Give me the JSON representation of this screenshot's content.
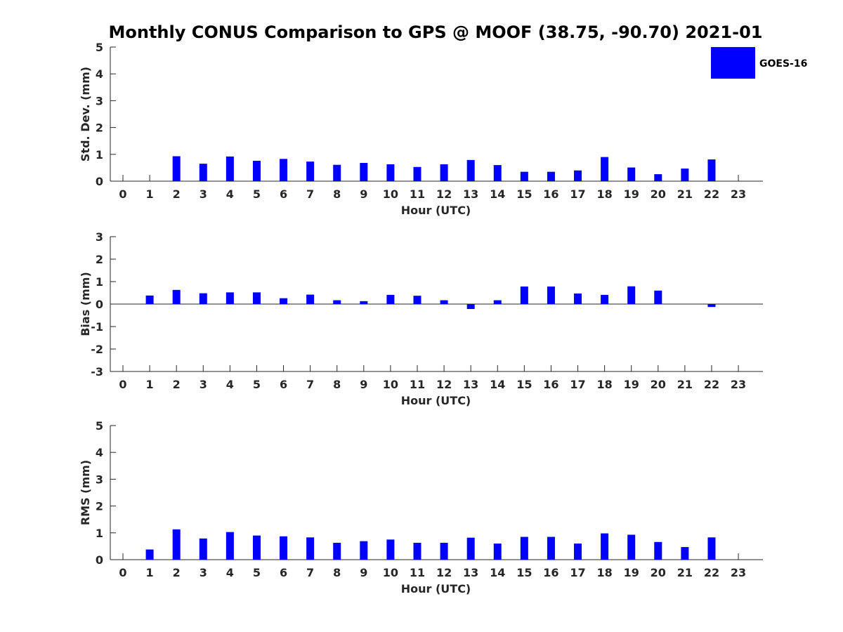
{
  "chart_data": {
    "title": "Monthly CONUS Comparison to GPS @ MOOF (38.75, -90.70) 2021-01",
    "legend": {
      "label": "GOES-16",
      "color": "#0000ff",
      "placement": "top-right"
    },
    "series_color": "#0000ff",
    "hours": [
      0,
      1,
      2,
      3,
      4,
      5,
      6,
      7,
      8,
      9,
      10,
      11,
      12,
      13,
      14,
      15,
      16,
      17,
      18,
      19,
      20,
      21,
      22,
      23
    ],
    "panels": [
      {
        "type": "bar",
        "name": "std-dev",
        "ylabel": "Std. Dev. (mm)",
        "xlabel": "Hour (UTC)",
        "ylim": [
          0,
          5
        ],
        "yticks": [
          0,
          1,
          2,
          3,
          4,
          5
        ],
        "zero_line": false,
        "values": [
          null,
          null,
          0.93,
          0.65,
          0.92,
          0.76,
          0.83,
          0.73,
          0.61,
          0.68,
          0.63,
          0.53,
          0.63,
          0.79,
          0.6,
          0.35,
          0.35,
          0.4,
          0.9,
          0.51,
          0.26,
          0.47,
          0.81,
          null
        ]
      },
      {
        "type": "bar",
        "name": "bias",
        "ylabel": "Bias (mm)",
        "xlabel": "Hour (UTC)",
        "ylim": [
          -3,
          3
        ],
        "yticks": [
          -3,
          -2,
          -1,
          0,
          1,
          2,
          3
        ],
        "zero_line": true,
        "values": [
          null,
          0.38,
          0.63,
          0.48,
          0.52,
          0.52,
          0.26,
          0.42,
          0.17,
          0.13,
          0.41,
          0.37,
          0.17,
          -0.22,
          0.17,
          0.78,
          0.78,
          0.47,
          0.41,
          0.79,
          0.6,
          null,
          -0.13,
          null
        ]
      },
      {
        "type": "bar",
        "name": "rms",
        "ylabel": "RMS (mm)",
        "xlabel": "Hour (UTC)",
        "ylim": [
          0,
          5
        ],
        "yticks": [
          0,
          1,
          2,
          3,
          4,
          5
        ],
        "zero_line": false,
        "values": [
          null,
          0.38,
          1.13,
          0.79,
          1.03,
          0.9,
          0.87,
          0.83,
          0.63,
          0.69,
          0.75,
          0.63,
          0.63,
          0.82,
          0.6,
          0.85,
          0.85,
          0.6,
          0.98,
          0.93,
          0.66,
          0.47,
          0.83,
          null
        ]
      }
    ]
  }
}
